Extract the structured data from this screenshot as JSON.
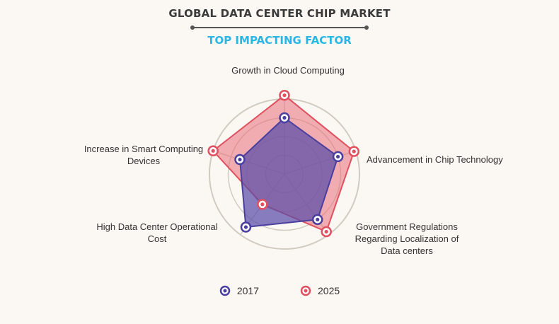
{
  "title": "GLOBAL  DATA CENTER CHIP MARKET",
  "subtitle": "TOP IMPACTING FACTOR",
  "chart_data": {
    "type": "radar",
    "axes": [
      [
        "Growth in Cloud Computing"
      ],
      [
        "Advancement in Chip Technology"
      ],
      [
        "Government Regulations",
        "Regarding Localization of",
        "Data centers"
      ],
      [
        "High Data Center Operational",
        "Cost"
      ],
      [
        "Increase in Smart Computing",
        "Devices"
      ]
    ],
    "rings": 4,
    "range": [
      0,
      4
    ],
    "series": [
      {
        "name": "2017",
        "color": "#4a3f9f",
        "fill": "#5a4ca8",
        "values": [
          3.0,
          3.0,
          3.0,
          3.5,
          2.5
        ]
      },
      {
        "name": "2025",
        "color": "#e0505f",
        "fill": "#e8707a",
        "values": [
          4.2,
          3.9,
          3.8,
          2.0,
          4.0
        ]
      }
    ],
    "legend_position": "bottom"
  }
}
